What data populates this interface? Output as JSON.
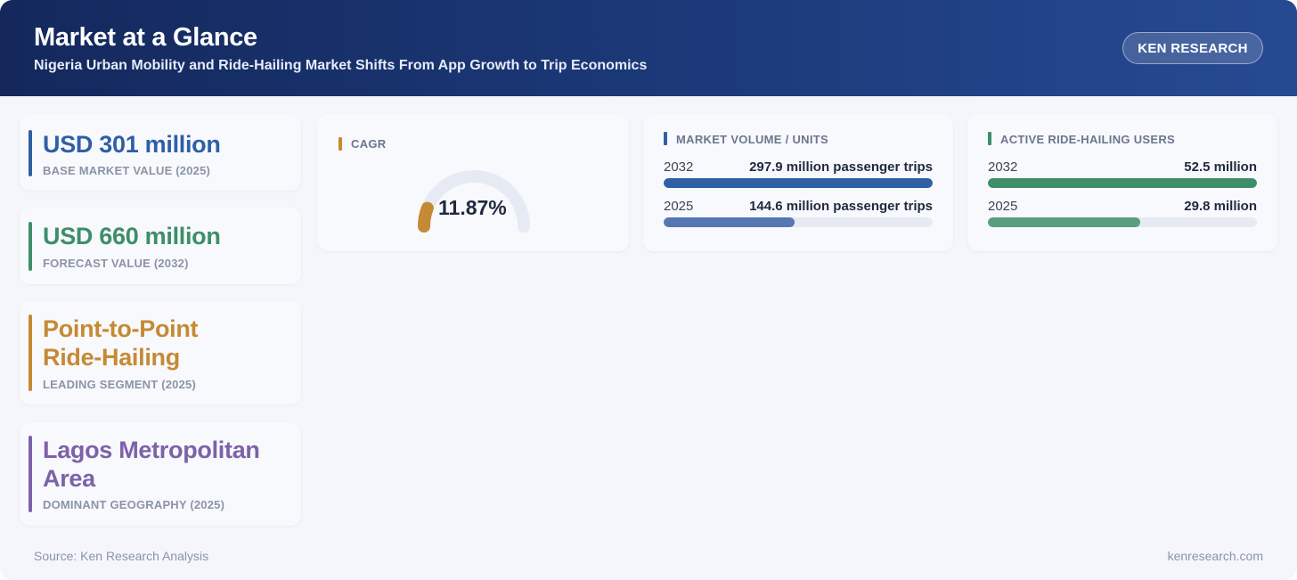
{
  "header": {
    "title": "Market at a Glance",
    "subtitle": "Nigeria Urban Mobility and Ride-Hailing Market Shifts From App Growth to Trip Economics",
    "brand_button": "KEN RESEARCH"
  },
  "colors": {
    "header_dark": "#14285c",
    "blue": "#2f5fa5",
    "green": "#3e8e6a",
    "amber": "#c58a35",
    "purple": "#7c62a8"
  },
  "kpis": [
    {
      "value": "USD 301 million",
      "label": "BASE MARKET VALUE (2025)",
      "color": "#2f5fa5"
    },
    {
      "value": "USD 660 million",
      "label": "FORECAST VALUE (2032)",
      "color": "#3e8e6a"
    },
    {
      "value_line1": "Point-to-Point",
      "value_line2": "Ride-Hailing",
      "label": "LEADING SEGMENT (2025)",
      "color": "#c58a35"
    },
    {
      "value_line1": "Lagos Metropolitan",
      "value_line2": "Area",
      "label": "DOMINANT GEOGRAPHY (2025)",
      "color": "#7c62a8"
    }
  ],
  "cagr": {
    "title": "CAGR",
    "value_text": "11.87%",
    "value_percent": 11.87,
    "accent": "#c58a35"
  },
  "market_volume": {
    "title": "MARKET VOLUME / UNITS",
    "accent": "#2f5fa5",
    "rows": [
      {
        "year": "2032",
        "value": "297.9 million passenger trips",
        "amount": 297.9
      },
      {
        "year": "2025",
        "value": "144.6 million passenger trips",
        "amount": 144.6
      }
    ]
  },
  "active_users": {
    "title": "ACTIVE RIDE-HAILING USERS",
    "accent": "#3e8e6a",
    "rows": [
      {
        "year": "2032",
        "value": "52.5 million",
        "amount": 52.5
      },
      {
        "year": "2025",
        "value": "29.8 million",
        "amount": 29.8
      }
    ]
  },
  "footer": {
    "source": "Source: Ken Research Analysis",
    "site": "kenresearch.com"
  }
}
